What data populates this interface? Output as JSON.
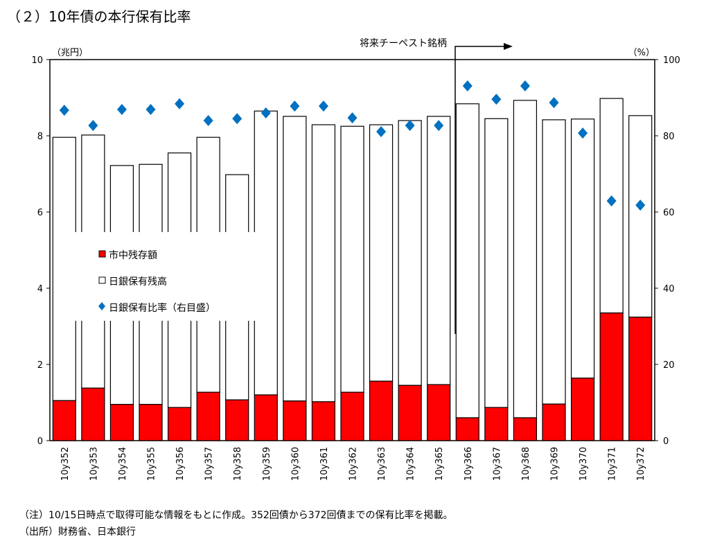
{
  "title": "（２）10年債の本行保有比率",
  "notes": [
    "（注）10/15日時点で取得可能な情報をもとに作成。352回債から372回債までの保有比率を掲載。",
    "（出所）財務省、日本銀行"
  ],
  "annotation": "将来チーペスト銘柄",
  "chart_data": {
    "type": "bar",
    "stacked": true,
    "categories": [
      "10y352",
      "10y353",
      "10y354",
      "10y355",
      "10y356",
      "10y357",
      "10y358",
      "10y359",
      "10y360",
      "10y361",
      "10y362",
      "10y363",
      "10y364",
      "10y365",
      "10y366",
      "10y367",
      "10y368",
      "10y369",
      "10y370",
      "10y371",
      "10y372"
    ],
    "series": [
      {
        "name": "市中残存額",
        "axis": "left",
        "color": "#ff0000",
        "values": [
          1.05,
          1.38,
          0.95,
          0.95,
          0.87,
          1.27,
          1.07,
          1.2,
          1.04,
          1.02,
          1.27,
          1.56,
          1.45,
          1.47,
          0.6,
          0.87,
          0.6,
          0.96,
          1.64,
          3.35,
          3.24
        ]
      },
      {
        "name": "日銀保有残高",
        "axis": "left",
        "color": "#ffffff",
        "values": [
          6.91,
          6.64,
          6.27,
          6.3,
          6.68,
          6.69,
          5.91,
          7.45,
          7.47,
          7.27,
          6.98,
          6.73,
          6.95,
          7.04,
          8.24,
          7.58,
          8.33,
          7.46,
          6.8,
          5.63,
          5.29
        ]
      },
      {
        "name": "日銀保有比率（右目盛）",
        "axis": "right",
        "type": "scatter",
        "color": "#0070c0",
        "values": [
          86.7,
          82.7,
          86.9,
          86.9,
          88.4,
          84.0,
          84.5,
          86.0,
          87.8,
          87.8,
          84.7,
          81.1,
          82.7,
          82.7,
          93.1,
          89.6,
          93.1,
          88.7,
          80.7,
          62.9,
          61.8
        ]
      }
    ],
    "ylabel_left": "（兆円）",
    "ylabel_right": "（%）",
    "ylim_left": [
      0,
      10
    ],
    "yticks_left": [
      0,
      2,
      4,
      6,
      8,
      10
    ],
    "ylim_right": [
      0,
      100
    ],
    "yticks_right": [
      0,
      20,
      40,
      60,
      80,
      100
    ],
    "legend_position": "center-left",
    "grid": false
  }
}
